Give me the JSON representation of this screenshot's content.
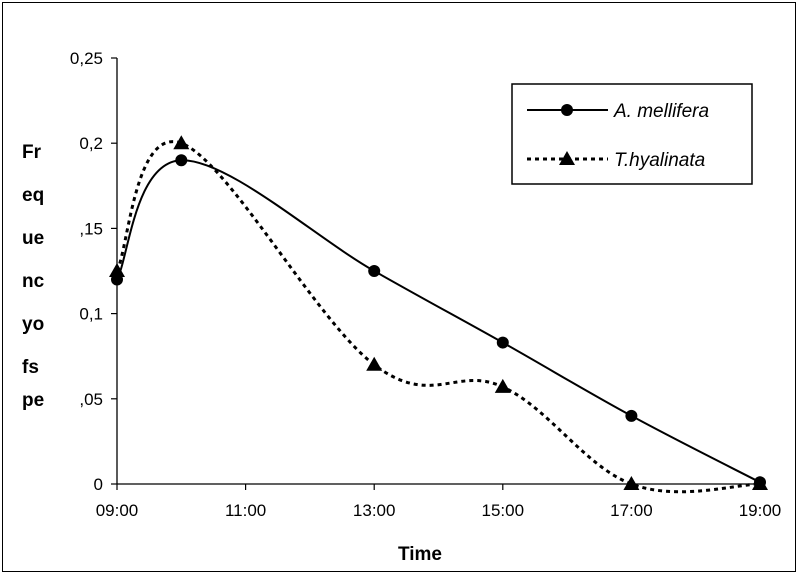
{
  "chart_data": {
    "type": "line",
    "title": "",
    "xlabel": "Time",
    "ylabel_fragments": [
      "Fr",
      "eq",
      "ue",
      "nc",
      "yo",
      "fs",
      "pe"
    ],
    "x_ticks": [
      "09:00",
      "11:00",
      "13:00",
      "15:00",
      "17:00",
      "19:00"
    ],
    "y_ticks": [
      "0",
      ",05",
      "0,1",
      ",15",
      "0,2",
      "0,25"
    ],
    "y_tick_values": [
      0,
      0.05,
      0.1,
      0.15,
      0.2,
      0.25
    ],
    "xlim": [
      9,
      19
    ],
    "ylim": [
      0,
      0.25
    ],
    "grid": false,
    "legend_position": "top-right",
    "series": [
      {
        "name": "A. mellifera",
        "marker": "circle",
        "line_style": "solid",
        "x": [
          9,
          10,
          13,
          15,
          17,
          19
        ],
        "y": [
          0.12,
          0.19,
          0.125,
          0.083,
          0.04,
          0.001
        ]
      },
      {
        "name": "T.hyalinata",
        "marker": "triangle",
        "line_style": "dotted",
        "x": [
          9,
          10,
          13,
          15,
          17,
          19
        ],
        "y": [
          0.125,
          0.2,
          0.07,
          0.057,
          0.0,
          0.0
        ]
      }
    ]
  }
}
